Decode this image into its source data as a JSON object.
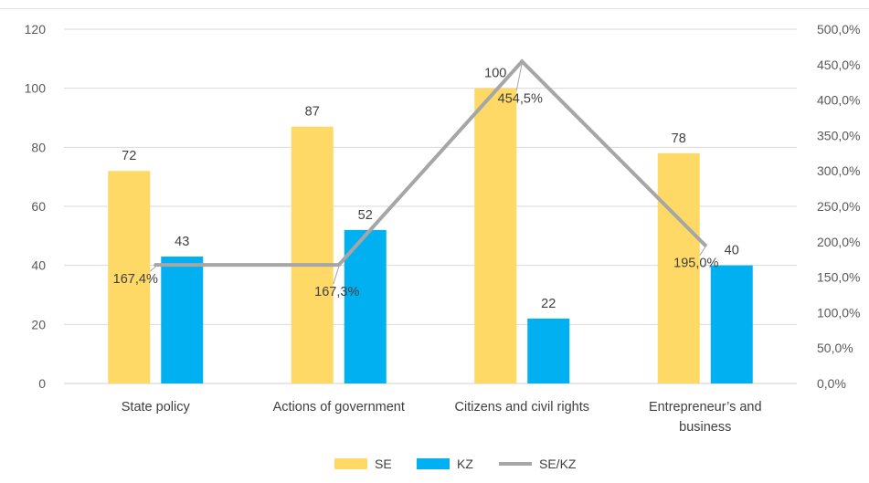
{
  "chart_data": {
    "type": "bar",
    "categories": [
      [
        "State policy"
      ],
      [
        "Actions of government"
      ],
      [
        "Citizens and civil rights"
      ],
      [
        "Entrepreneur’s and",
        "business"
      ]
    ],
    "series": [
      {
        "name": "SE",
        "kind": "bar",
        "axis": "left",
        "color": "#FFD966",
        "values": [
          72,
          87,
          100,
          78
        ],
        "labels": [
          "72",
          "87",
          "100",
          "78"
        ]
      },
      {
        "name": "KZ",
        "kind": "bar",
        "axis": "left",
        "color": "#00B0F0",
        "values": [
          43,
          52,
          22,
          40
        ],
        "labels": [
          "43",
          "52",
          "22",
          "40"
        ]
      },
      {
        "name": "SE/KZ",
        "kind": "line",
        "axis": "right",
        "color": "#A6A6A6",
        "values": [
          167.4,
          167.3,
          454.5,
          195.0
        ],
        "labels": [
          "167,4%",
          "167,3%",
          "454,5%",
          "195,0%"
        ]
      }
    ],
    "y_left": {
      "min": 0,
      "max": 120,
      "ticks": [
        "0",
        "20",
        "40",
        "60",
        "80",
        "100",
        "120"
      ]
    },
    "y_right": {
      "min": 0,
      "max": 500,
      "ticks": [
        "0,0%",
        "50,0%",
        "100,0%",
        "150,0%",
        "200,0%",
        "250,0%",
        "300,0%",
        "350,0%",
        "400,0%",
        "450,0%",
        "500,0%"
      ]
    },
    "grid": true,
    "legend": "bottom"
  }
}
